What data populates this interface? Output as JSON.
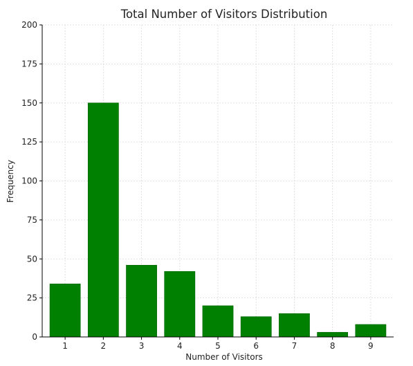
{
  "chart_data": {
    "type": "bar",
    "title": "Total Number of Visitors Distribution",
    "xlabel": "Number of Visitors",
    "ylabel": "Frequency",
    "categories": [
      "1",
      "2",
      "3",
      "4",
      "5",
      "6",
      "7",
      "8",
      "9"
    ],
    "values": [
      34,
      150,
      46,
      42,
      20,
      13,
      15,
      3,
      8
    ],
    "ylim": [
      0,
      200
    ],
    "yticks": [
      0,
      25,
      50,
      75,
      100,
      125,
      150,
      175,
      200
    ],
    "grid": true,
    "legend": "none",
    "colors": {
      "bar": "#008000",
      "bar_edge": "#006400",
      "grid": "#d9d9d9",
      "axis": "#000000"
    }
  }
}
